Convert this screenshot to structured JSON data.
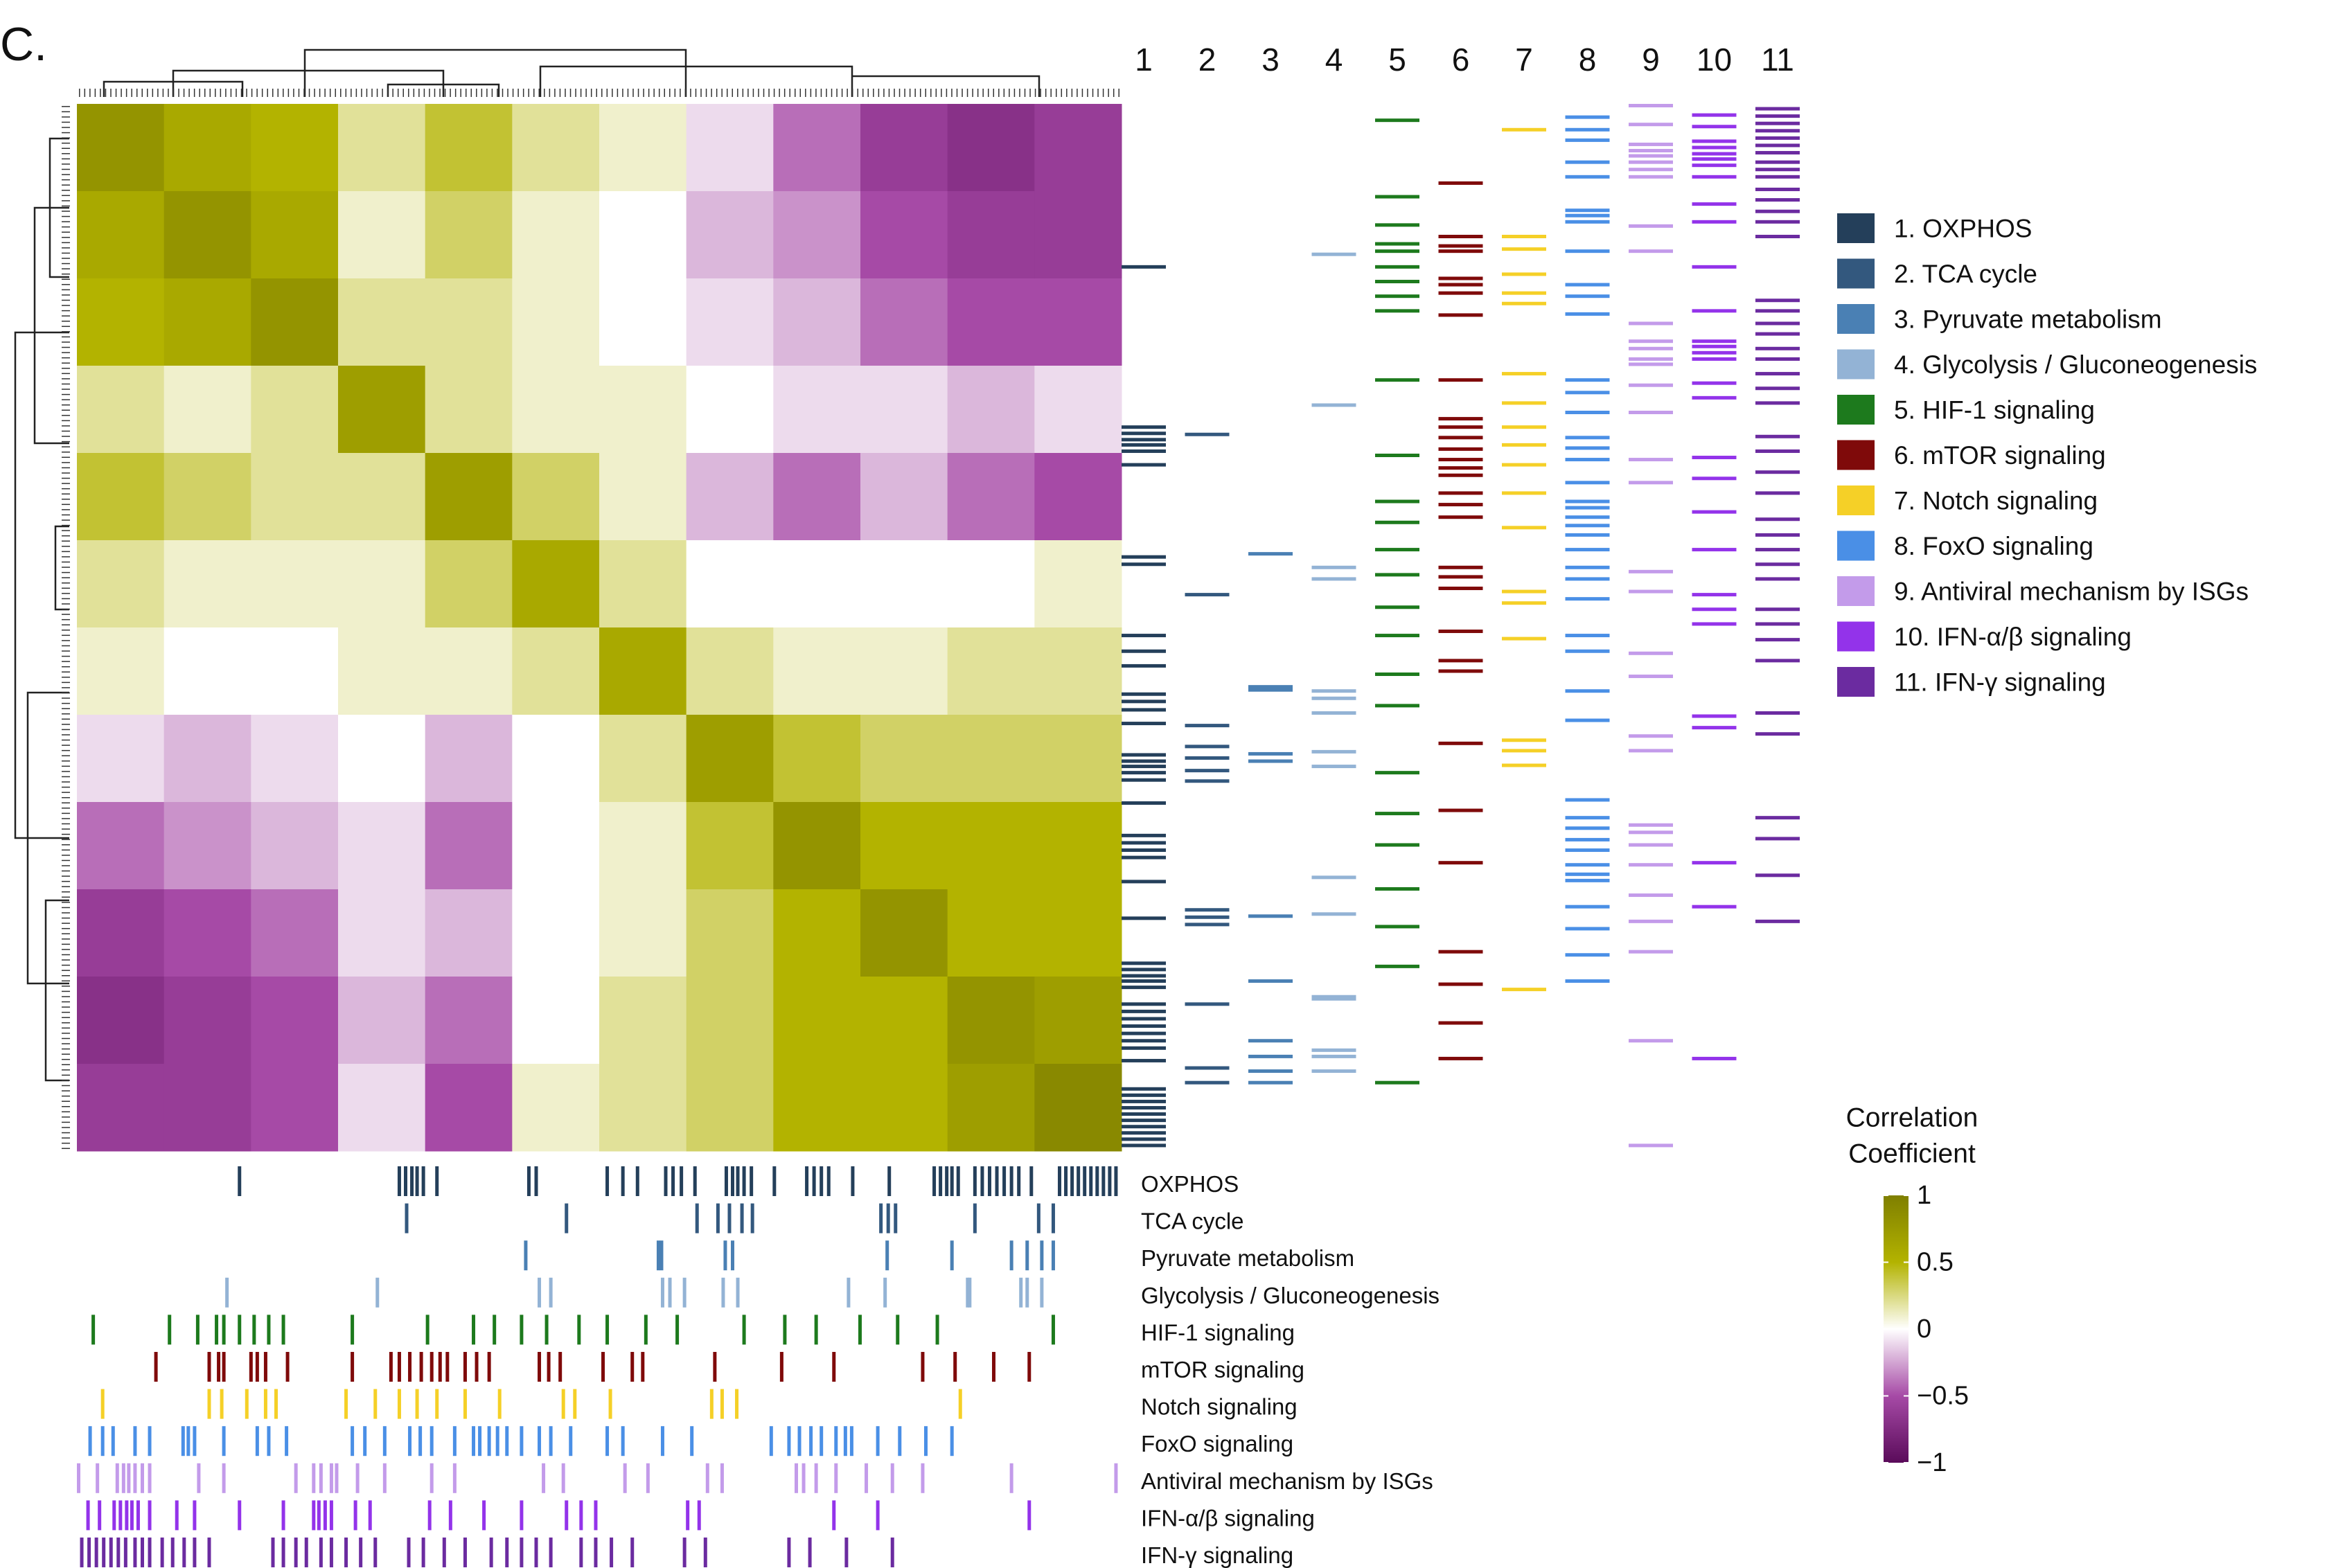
{
  "chart_data": {
    "type": "heatmap",
    "panel_label": "C.",
    "clim": [
      -1,
      1
    ],
    "colorscale": [
      "#5a0b5a",
      "#a64aa6",
      "#ffffff",
      "#b3b300",
      "#7f7f00"
    ],
    "colorbar_title": [
      "Correlation",
      "Coefficient"
    ],
    "cticks": [
      1,
      0.5,
      0,
      {
        "value": -0.5,
        "label": "−0.5"
      },
      {
        "value": -1,
        "label": "−1"
      }
    ],
    "matrix": [
      [
        0.8,
        0.6,
        0.5,
        0.2,
        0.4,
        0.2,
        0.1,
        -0.1,
        -0.4,
        -0.6,
        -0.7,
        -0.6
      ],
      [
        0.6,
        0.8,
        0.6,
        0.1,
        0.3,
        0.1,
        0,
        -0.2,
        -0.3,
        -0.5,
        -0.6,
        -0.6
      ],
      [
        0.5,
        0.6,
        0.8,
        0.2,
        0.2,
        0.1,
        0,
        -0.1,
        -0.2,
        -0.4,
        -0.5,
        -0.5
      ],
      [
        0.2,
        0.1,
        0.2,
        0.7,
        0.2,
        0.1,
        0.1,
        0,
        -0.1,
        -0.1,
        -0.2,
        -0.1
      ],
      [
        0.4,
        0.3,
        0.2,
        0.2,
        0.7,
        0.3,
        0.1,
        -0.2,
        -0.4,
        -0.2,
        -0.4,
        -0.5
      ],
      [
        0.2,
        0.1,
        0.1,
        0.1,
        0.3,
        0.6,
        0.2,
        0,
        0,
        0,
        0,
        0.1
      ],
      [
        0.1,
        0,
        0,
        0.1,
        0.1,
        0.2,
        0.6,
        0.2,
        0.1,
        0.1,
        0.2,
        0.2
      ],
      [
        -0.1,
        -0.2,
        -0.1,
        0,
        -0.2,
        0,
        0.2,
        0.7,
        0.4,
        0.3,
        0.3,
        0.3
      ],
      [
        -0.4,
        -0.3,
        -0.2,
        -0.1,
        -0.4,
        0,
        0.1,
        0.4,
        0.8,
        0.5,
        0.5,
        0.5
      ],
      [
        -0.6,
        -0.5,
        -0.4,
        -0.1,
        -0.2,
        0,
        0.1,
        0.3,
        0.5,
        0.8,
        0.5,
        0.5
      ],
      [
        -0.7,
        -0.6,
        -0.5,
        -0.2,
        -0.4,
        0,
        0.2,
        0.3,
        0.5,
        0.5,
        0.8,
        0.7
      ],
      [
        -0.6,
        -0.6,
        -0.5,
        -0.1,
        -0.5,
        0.1,
        0.2,
        0.3,
        0.5,
        0.5,
        0.7,
        0.9
      ]
    ],
    "pathways": [
      {
        "name": "1. OXPHOS",
        "label": "OXPHOS",
        "column": "1",
        "color": "#243f5a",
        "positions": [
          0.154,
          0.307,
          0.313,
          0.319,
          0.324,
          0.33,
          0.343,
          0.431,
          0.438,
          0.506,
          0.521,
          0.535,
          0.562,
          0.569,
          0.577,
          0.59,
          0.62,
          0.626,
          0.631,
          0.637,
          0.644,
          0.666,
          0.697,
          0.704,
          0.711,
          0.718,
          0.741,
          0.776,
          0.819,
          0.825,
          0.831,
          0.836,
          0.842,
          0.858,
          0.865,
          0.872,
          0.879,
          0.886,
          0.893,
          0.9,
          0.912,
          0.939,
          0.945,
          0.951,
          0.957,
          0.963,
          0.969,
          0.975,
          0.981,
          0.987,
          0.993
        ]
      },
      {
        "name": "2. TCA cycle",
        "label": "TCA cycle",
        "column": "2",
        "color": "#33587e",
        "positions": [
          0.314,
          0.467,
          0.592,
          0.612,
          0.623,
          0.635,
          0.645,
          0.768,
          0.775,
          0.782,
          0.858,
          0.919,
          0.933
        ]
      },
      {
        "name": "3. Pyruvate  metabolism",
        "label": "Pyruvate  metabolism",
        "column": "3",
        "color": "#4a80b4",
        "positions": [
          0.428,
          0.555,
          0.558,
          0.619,
          0.626,
          0.774,
          0.836,
          0.893,
          0.908,
          0.922,
          0.933
        ]
      },
      {
        "name": "4. Glycolysis / Gluconeogenesis",
        "label": "Glycolysis / Gluconeogenesis",
        "column": "4",
        "color": "#93b3d5",
        "positions": [
          0.142,
          0.286,
          0.441,
          0.452,
          0.559,
          0.566,
          0.58,
          0.617,
          0.631,
          0.737,
          0.772,
          0.851,
          0.853,
          0.902,
          0.908,
          0.922
        ]
      },
      {
        "name": "5. HIF-1 signaling",
        "label": "HIF-1 signaling",
        "column": "5",
        "color": "#1d7a1d",
        "positions": [
          0.014,
          0.087,
          0.114,
          0.132,
          0.139,
          0.154,
          0.168,
          0.182,
          0.196,
          0.262,
          0.334,
          0.378,
          0.398,
          0.424,
          0.448,
          0.479,
          0.506,
          0.543,
          0.573,
          0.637,
          0.676,
          0.706,
          0.748,
          0.784,
          0.822,
          0.933
        ]
      },
      {
        "name": "6. mTOR signaling",
        "label": "mTOR signaling",
        "column": "6",
        "color": "#7f0a0a",
        "positions": [
          0.074,
          0.125,
          0.134,
          0.139,
          0.165,
          0.171,
          0.179,
          0.2,
          0.262,
          0.299,
          0.307,
          0.317,
          0.328,
          0.338,
          0.346,
          0.353,
          0.37,
          0.381,
          0.393,
          0.441,
          0.45,
          0.461,
          0.502,
          0.53,
          0.54,
          0.609,
          0.673,
          0.723,
          0.808,
          0.839,
          0.876,
          0.91
        ]
      },
      {
        "name": "7. Notch signaling",
        "label": "Notch signaling",
        "column": "7",
        "color": "#f5d027",
        "positions": [
          0.023,
          0.125,
          0.137,
          0.161,
          0.179,
          0.189,
          0.256,
          0.284,
          0.307,
          0.324,
          0.343,
          0.37,
          0.403,
          0.464,
          0.475,
          0.509,
          0.606,
          0.616,
          0.63,
          0.844
        ]
      },
      {
        "name": "8. FoxO signaling",
        "label": "FoxO signaling",
        "column": "8",
        "color": "#4a8fe6",
        "positions": [
          0.011,
          0.023,
          0.033,
          0.054,
          0.068,
          0.1,
          0.105,
          0.111,
          0.139,
          0.171,
          0.182,
          0.199,
          0.262,
          0.274,
          0.293,
          0.317,
          0.327,
          0.338,
          0.36,
          0.378,
          0.384,
          0.393,
          0.401,
          0.41,
          0.424,
          0.441,
          0.452,
          0.471,
          0.506,
          0.521,
          0.559,
          0.587,
          0.663,
          0.68,
          0.69,
          0.701,
          0.711,
          0.725,
          0.734,
          0.74,
          0.765,
          0.786,
          0.811,
          0.836
        ]
      },
      {
        "name": "9. Antiviral mechanism by ISGs",
        "label": "Antiviral mechanism by ISGs",
        "column": "9",
        "color": "#c39bea",
        "positions": [
          0.0,
          0.018,
          0.037,
          0.043,
          0.048,
          0.054,
          0.061,
          0.068,
          0.115,
          0.139,
          0.208,
          0.225,
          0.232,
          0.242,
          0.247,
          0.267,
          0.293,
          0.338,
          0.36,
          0.445,
          0.464,
          0.523,
          0.545,
          0.602,
          0.616,
          0.687,
          0.694,
          0.706,
          0.725,
          0.754,
          0.779,
          0.808,
          0.893,
          0.993
        ]
      },
      {
        "name": "10. IFN-α/β signaling",
        "label": "IFN-α/β signaling",
        "column": "10",
        "color": "#9333ea",
        "positions": [
          0.009,
          0.02,
          0.034,
          0.04,
          0.046,
          0.051,
          0.057,
          0.068,
          0.094,
          0.111,
          0.154,
          0.196,
          0.225,
          0.23,
          0.236,
          0.242,
          0.265,
          0.279,
          0.336,
          0.356,
          0.388,
          0.424,
          0.467,
          0.481,
          0.495,
          0.583,
          0.594,
          0.723,
          0.765,
          0.91
        ]
      },
      {
        "name": "11. IFN-γ signaling",
        "label": "IFN-γ signaling",
        "column": "11",
        "color": "#6b2ba0",
        "positions": [
          0.003,
          0.01,
          0.017,
          0.024,
          0.031,
          0.038,
          0.045,
          0.054,
          0.061,
          0.068,
          0.08,
          0.09,
          0.101,
          0.111,
          0.125,
          0.186,
          0.196,
          0.208,
          0.218,
          0.232,
          0.242,
          0.256,
          0.27,
          0.284,
          0.316,
          0.33,
          0.35,
          0.37,
          0.395,
          0.41,
          0.424,
          0.438,
          0.452,
          0.481,
          0.495,
          0.51,
          0.53,
          0.58,
          0.6,
          0.68,
          0.7,
          0.735,
          0.779
        ]
      }
    ]
  }
}
